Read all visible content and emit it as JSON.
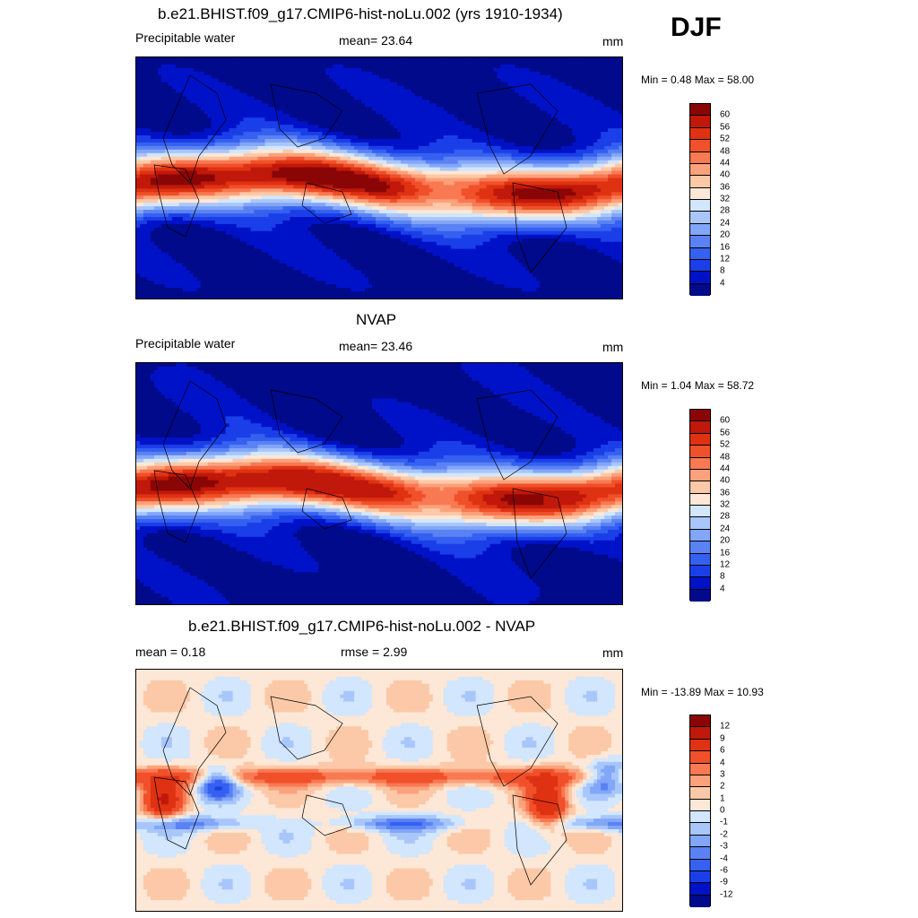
{
  "season": "DJF",
  "palette": [
    "#000a8a",
    "#0012c8",
    "#1a3fe8",
    "#3560f0",
    "#5a82f4",
    "#82a6f8",
    "#a9c6fb",
    "#d2e6fd",
    "#fde7d6",
    "#fcc9a8",
    "#fba27c",
    "#f87952",
    "#f0502a",
    "#df3212",
    "#c0180a",
    "#8a0606"
  ],
  "panels": [
    {
      "title": "b.e21.BHIST.f09_g17.CMIP6-hist-noLu.002 (yrs 1910-1934)",
      "left_label": "Precipitable water",
      "center_label": "mean=  23.64",
      "right_label": "mm",
      "minmax": "Min =   0.48 Max =  58.00",
      "colorbar_labels": [
        "60",
        "56",
        "52",
        "48",
        "44",
        "40",
        "36",
        "32",
        "28",
        "24",
        "20",
        "16",
        "12",
        "8",
        "4"
      ],
      "kind": "field"
    },
    {
      "title": "NVAP",
      "left_label": "Precipitable water",
      "center_label": "mean=  23.46",
      "right_label": "mm",
      "minmax": "Min =   1.04 Max =  58.72",
      "colorbar_labels": [
        "60",
        "56",
        "52",
        "48",
        "44",
        "40",
        "36",
        "32",
        "28",
        "24",
        "20",
        "16",
        "12",
        "8",
        "4"
      ],
      "kind": "field"
    },
    {
      "title": "b.e21.BHIST.f09_g17.CMIP6-hist-noLu.002 - NVAP",
      "left_label": "mean =   0.18",
      "center_label": "rmse =   2.99",
      "right_label": "mm",
      "minmax": "Min = -13.89 Max =  10.93",
      "colorbar_labels": [
        "12",
        "9",
        "6",
        "4",
        "3",
        "2",
        "1",
        "0",
        "-1",
        "-2",
        "-3",
        "-4",
        "-6",
        "-9",
        "-12"
      ],
      "kind": "diff"
    }
  ]
}
